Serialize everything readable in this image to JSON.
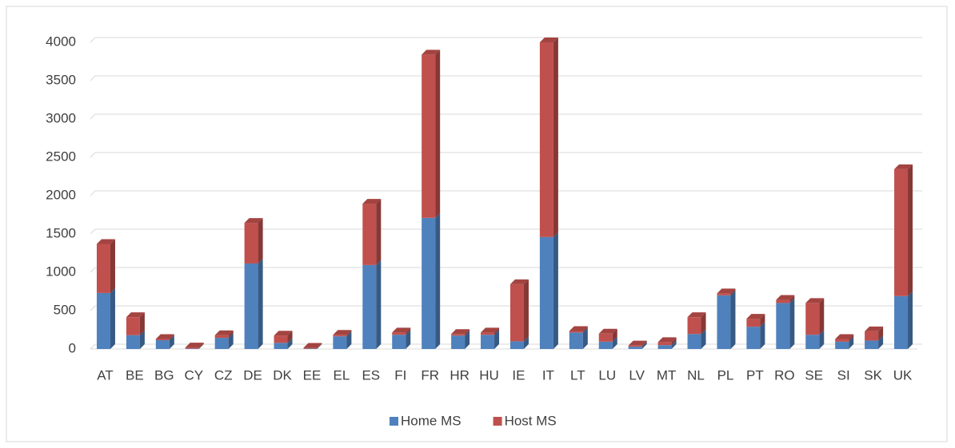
{
  "chart_data": {
    "type": "bar",
    "stacked": true,
    "categories": [
      "AT",
      "BE",
      "BG",
      "CY",
      "CZ",
      "DE",
      "DK",
      "EE",
      "EL",
      "ES",
      "FI",
      "FR",
      "HR",
      "HU",
      "IE",
      "IT",
      "LT",
      "LU",
      "LV",
      "MT",
      "NL",
      "PL",
      "PT",
      "RO",
      "SE",
      "SI",
      "SK",
      "UK"
    ],
    "series": [
      {
        "name": "Home MS",
        "color": "#4f81bd",
        "values": [
          730,
          180,
          115,
          5,
          145,
          1115,
          80,
          5,
          165,
          1095,
          185,
          1710,
          175,
          185,
          100,
          1460,
          215,
          95,
          30,
          50,
          195,
          700,
          290,
          600,
          185,
          95,
          110,
          690
        ]
      },
      {
        "name": "Host MS",
        "color": "#c0504d",
        "values": [
          640,
          235,
          15,
          15,
          35,
          530,
          95,
          10,
          20,
          800,
          30,
          2130,
          20,
          30,
          745,
          2540,
          20,
          105,
          15,
          40,
          220,
          25,
          105,
          40,
          415,
          35,
          120,
          1655
        ]
      }
    ],
    "ylim": [
      0,
      4000
    ],
    "yticks": [
      0,
      500,
      1000,
      1500,
      2000,
      2500,
      3000,
      3500,
      4000
    ],
    "grid": true,
    "legend": "bottom"
  }
}
